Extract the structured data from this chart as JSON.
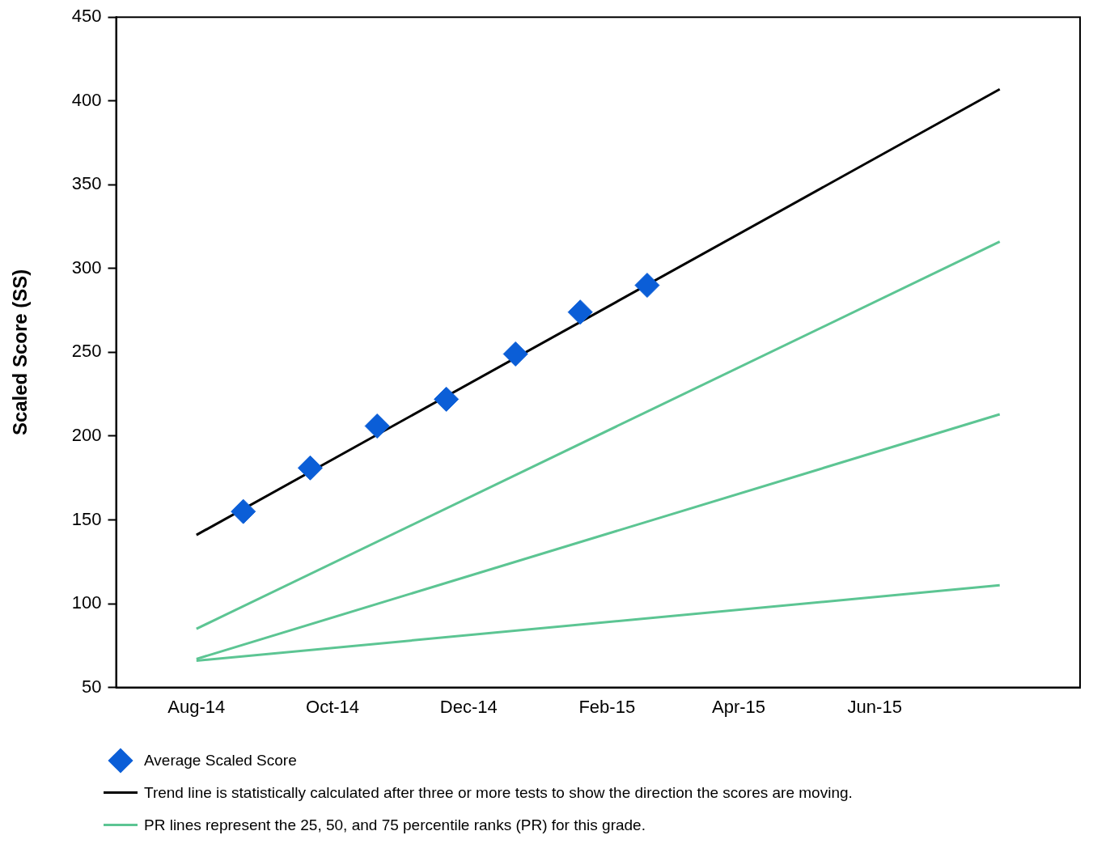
{
  "chart_data": {
    "type": "line",
    "ylabel": "Scaled Score (SS)",
    "xlim": [
      "2014-06-26",
      "2015-09-01"
    ],
    "xticks": [
      {
        "value": "2014-08-01",
        "label": "Aug-14"
      },
      {
        "value": "2014-10-01",
        "label": "Oct-14"
      },
      {
        "value": "2014-12-01",
        "label": "Dec-14"
      },
      {
        "value": "2015-02-01",
        "label": "Feb-15"
      },
      {
        "value": "2015-04-01",
        "label": "Apr-15"
      },
      {
        "value": "2015-06-01",
        "label": "Jun-15"
      }
    ],
    "ylim": [
      50,
      450
    ],
    "yticks": [
      50,
      100,
      150,
      200,
      250,
      300,
      350,
      400,
      450
    ],
    "grid": false,
    "legend": "bottom",
    "series": [
      {
        "name": "Average Scaled Score",
        "type": "scatter",
        "marker": "diamond",
        "color": "#0b5ed7",
        "x": [
          "2014-08-22",
          "2014-09-21",
          "2014-10-21",
          "2014-11-21",
          "2014-12-22",
          "2015-01-20",
          "2015-02-19"
        ],
        "values": [
          155,
          181,
          206,
          222,
          249,
          274,
          290
        ]
      },
      {
        "name": "Trend line is statistically calculated after three or more tests to show the direction the scores are moving.",
        "type": "line",
        "color": "#000000",
        "x": [
          "2014-08-01",
          "2015-07-27"
        ],
        "values": [
          141,
          407
        ]
      },
      {
        "name": "PR lines represent the 25, 50, and 75 percentile ranks (PR) for this grade.",
        "type": "line",
        "color": "#5cc593",
        "x": [
          "2014-08-01",
          "2015-07-27"
        ],
        "values": [
          85,
          316
        ]
      },
      {
        "type": "line",
        "color": "#5cc593",
        "x": [
          "2014-08-01",
          "2015-07-27"
        ],
        "values": [
          67,
          213
        ]
      },
      {
        "type": "line",
        "color": "#5cc593",
        "x": [
          "2014-08-01",
          "2015-07-27"
        ],
        "values": [
          66,
          111
        ]
      }
    ]
  }
}
